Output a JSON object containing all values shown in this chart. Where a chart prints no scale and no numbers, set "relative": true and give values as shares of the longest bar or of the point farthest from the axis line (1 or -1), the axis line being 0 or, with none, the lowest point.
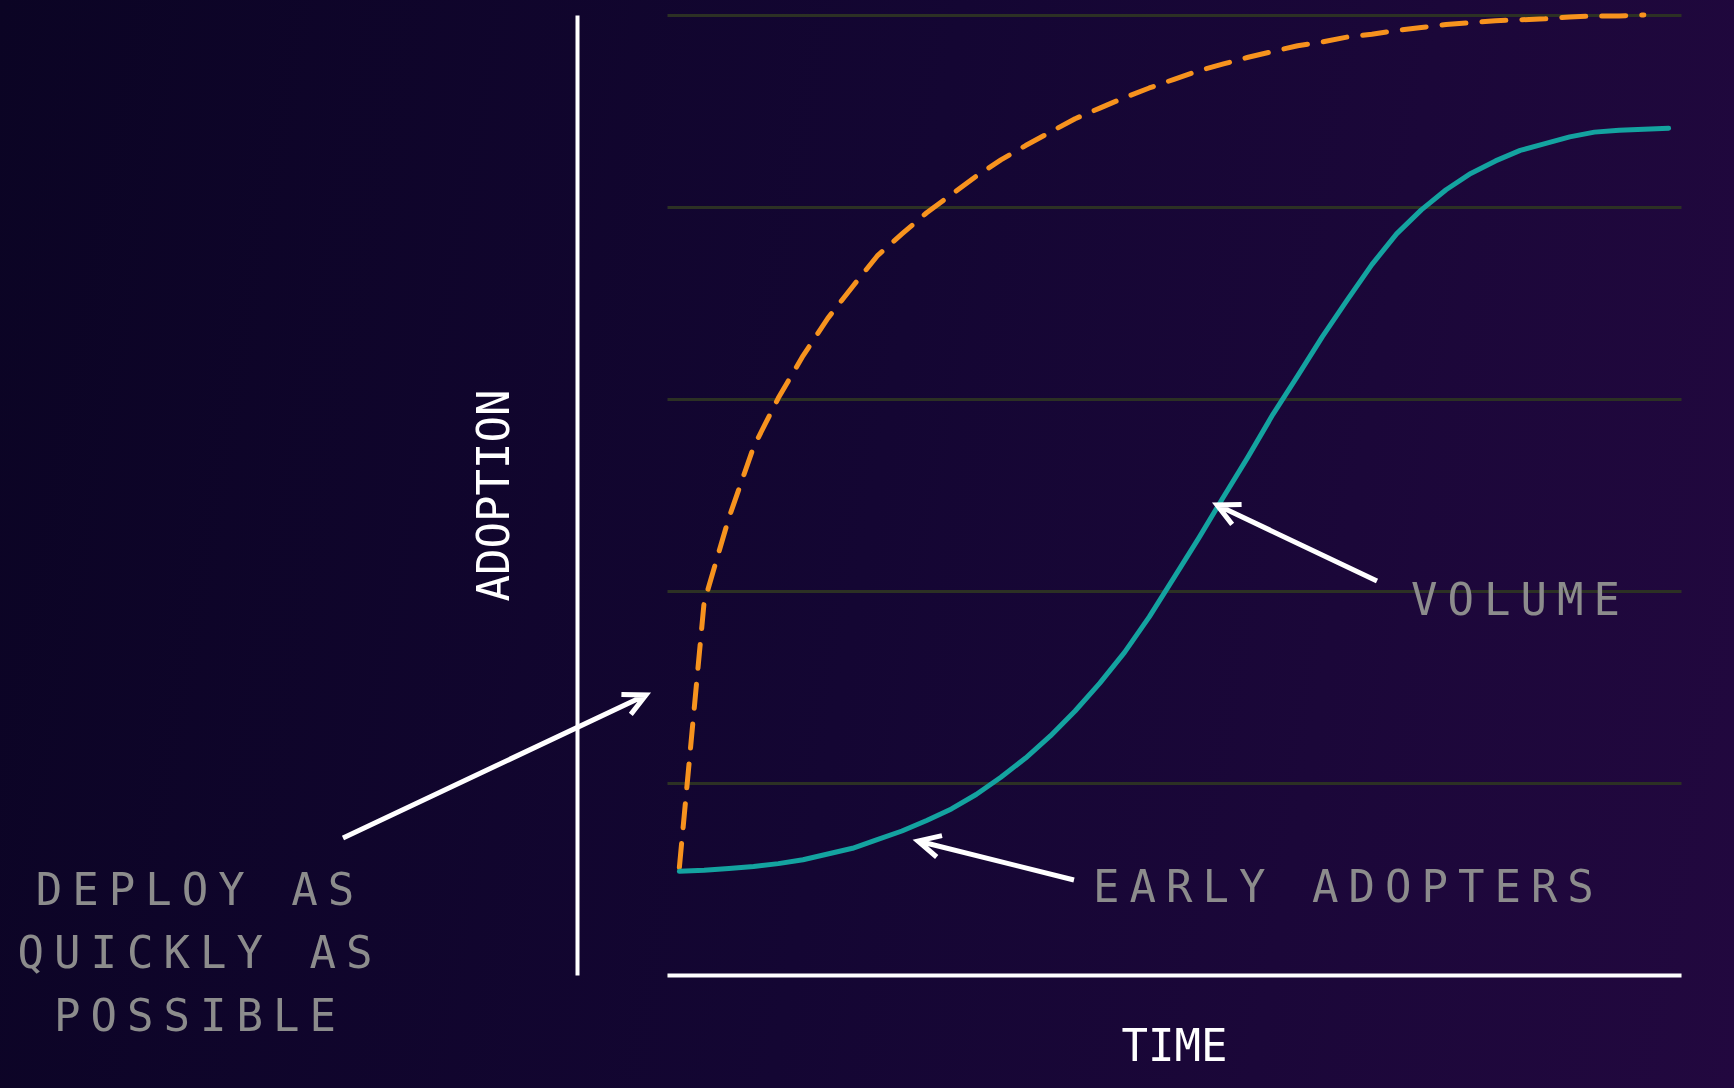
{
  "chart_data": {
    "type": "line",
    "relative": true,
    "xlabel": "TIME",
    "ylabel": "ADOPTION",
    "grid": "y",
    "categories": [
      null,
      null,
      null,
      null,
      null,
      null,
      null,
      null,
      null,
      null,
      null,
      null,
      null,
      null,
      null,
      null,
      null,
      null,
      null,
      null,
      null,
      null,
      null,
      null,
      null,
      null,
      null,
      null,
      null,
      null,
      null,
      null,
      null,
      null,
      null,
      null,
      null,
      null,
      null,
      null,
      null
    ],
    "series": [
      {
        "color": "#f7931e",
        "line_style": "dashed",
        "values": [
          0.112,
          0.388,
          0.476,
          0.55,
          0.601,
          0.645,
          0.684,
          0.717,
          0.749,
          0.772,
          0.794,
          0.813,
          0.832,
          0.849,
          0.864,
          0.878,
          0.892,
          0.903,
          0.914,
          0.924,
          0.933,
          0.942,
          0.949,
          0.956,
          0.962,
          0.968,
          0.972,
          0.977,
          0.98,
          0.984,
          0.987,
          0.99,
          0.992,
          0.994,
          0.995,
          0.996,
          0.998,
          0.999,
          0.999,
          1,
          null
        ]
      },
      {
        "color": "#14a3a0",
        "line_style": "solid",
        "values": [
          0.108,
          0.109,
          0.111,
          0.113,
          0.116,
          0.12,
          0.126,
          0.132,
          0.141,
          0.15,
          0.161,
          0.173,
          0.188,
          0.206,
          0.226,
          0.249,
          0.275,
          0.304,
          0.336,
          0.373,
          0.414,
          0.455,
          0.498,
          0.54,
          0.584,
          0.624,
          0.665,
          0.703,
          0.74,
          0.772,
          0.797,
          0.818,
          0.835,
          0.848,
          0.859,
          0.866,
          0.873,
          0.878,
          0.88,
          0.881,
          0.882
        ]
      }
    ],
    "annotations": [
      "DEPLOY AS QUICKLY AS POSSIBLE",
      "VOLUME",
      "EARLY ADOPTERS"
    ]
  }
}
